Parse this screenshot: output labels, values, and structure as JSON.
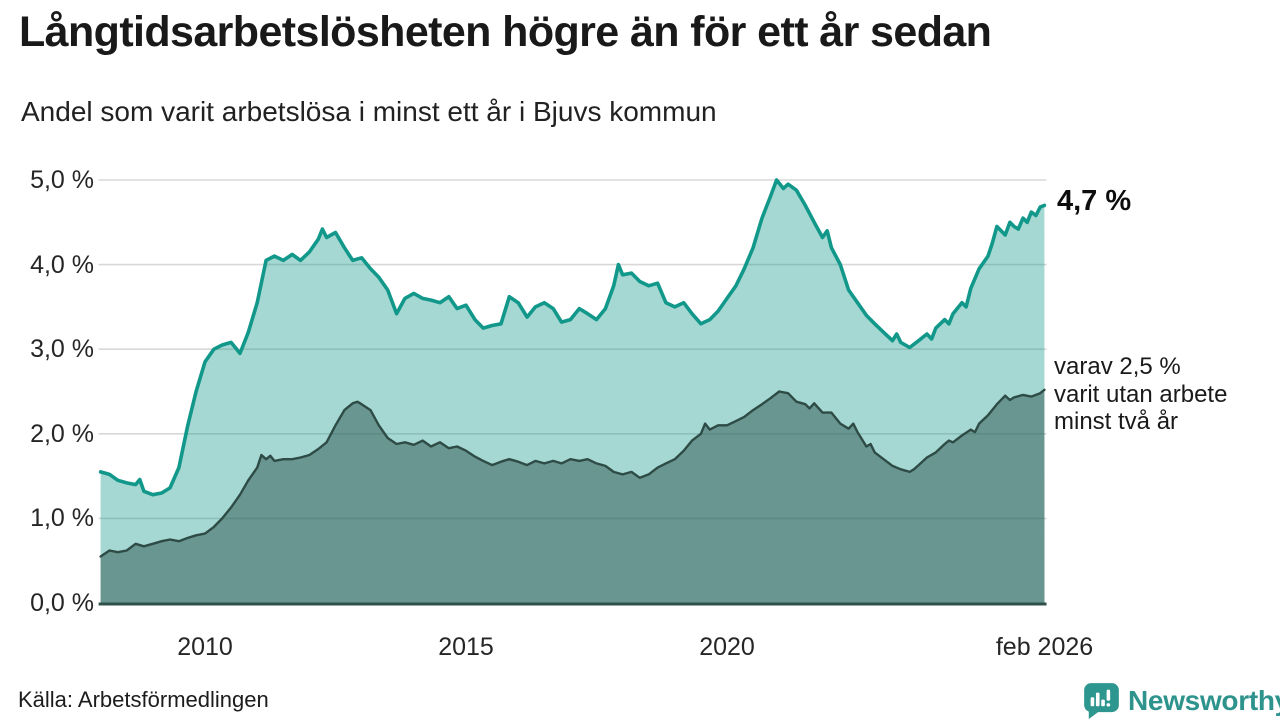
{
  "header": {
    "title": "Långtidsarbetslösheten högre än för ett år sedan",
    "subtitle": "Andel som varit arbetslösa i minst ett år i Bjuvs kommun"
  },
  "annotations": {
    "latest_value": "4,7 %",
    "secondary": [
      "varav 2,5 %",
      "varit utan arbete",
      "minst två år"
    ]
  },
  "footer": {
    "source": "Källa: Arbetsförmedlingen",
    "brand": "Newsworthy"
  },
  "colors": {
    "accent_teal": "#12988a",
    "light_fill": "#a5d8d3",
    "dark_fill": "#699690",
    "dark_line": "#2e4b46",
    "gridline": "#d8d8d8",
    "axis_line": "#30504a",
    "brand_teal": "#2e938c",
    "text": "#1a1a1a"
  },
  "chart_data": {
    "type": "area",
    "title": "Långtidsarbetslösheten högre än för ett år sedan",
    "subtitle": "Andel som varit arbetslösa i minst ett år i Bjuvs kommun",
    "xlabel": "",
    "ylabel": "",
    "grid": true,
    "ylim": [
      0,
      5
    ],
    "x_range": [
      2008.0,
      2026.083
    ],
    "y_ticks": [
      {
        "label": "0,0 %",
        "value": 0
      },
      {
        "label": "1,0 %",
        "value": 1
      },
      {
        "label": "2,0 %",
        "value": 2
      },
      {
        "label": "3,0 %",
        "value": 3
      },
      {
        "label": "4,0 %",
        "value": 4
      },
      {
        "label": "5,0 %",
        "value": 5
      }
    ],
    "x_ticks": [
      {
        "label": "2010",
        "year": 2010
      },
      {
        "label": "2015",
        "year": 2015
      },
      {
        "label": "2020",
        "year": 2020
      },
      {
        "label": "feb 2026",
        "year": 2026.083
      }
    ],
    "unit": "%",
    "series": [
      {
        "name": "Andel som varit arbetslösa i minst ett år",
        "line_color": "#12988a",
        "fill_color": "rgba(18,152,138,0.38)",
        "line_width": 3.6,
        "end_label": "4,7 %",
        "points": [
          [
            2008.0,
            1.55
          ],
          [
            2008.17,
            1.52
          ],
          [
            2008.33,
            1.45
          ],
          [
            2008.5,
            1.42
          ],
          [
            2008.67,
            1.4
          ],
          [
            2008.75,
            1.46
          ],
          [
            2008.83,
            1.32
          ],
          [
            2009.0,
            1.28
          ],
          [
            2009.17,
            1.3
          ],
          [
            2009.33,
            1.36
          ],
          [
            2009.5,
            1.6
          ],
          [
            2009.67,
            2.1
          ],
          [
            2009.83,
            2.5
          ],
          [
            2010.0,
            2.85
          ],
          [
            2010.17,
            3.0
          ],
          [
            2010.33,
            3.05
          ],
          [
            2010.5,
            3.08
          ],
          [
            2010.67,
            2.95
          ],
          [
            2010.83,
            3.2
          ],
          [
            2011.0,
            3.55
          ],
          [
            2011.17,
            4.05
          ],
          [
            2011.33,
            4.1
          ],
          [
            2011.5,
            4.05
          ],
          [
            2011.67,
            4.12
          ],
          [
            2011.83,
            4.05
          ],
          [
            2012.0,
            4.15
          ],
          [
            2012.17,
            4.3
          ],
          [
            2012.25,
            4.42
          ],
          [
            2012.33,
            4.32
          ],
          [
            2012.5,
            4.38
          ],
          [
            2012.67,
            4.2
          ],
          [
            2012.83,
            4.05
          ],
          [
            2013.0,
            4.08
          ],
          [
            2013.17,
            3.95
          ],
          [
            2013.33,
            3.85
          ],
          [
            2013.5,
            3.7
          ],
          [
            2013.67,
            3.42
          ],
          [
            2013.83,
            3.6
          ],
          [
            2014.0,
            3.66
          ],
          [
            2014.17,
            3.6
          ],
          [
            2014.33,
            3.58
          ],
          [
            2014.5,
            3.55
          ],
          [
            2014.67,
            3.62
          ],
          [
            2014.83,
            3.48
          ],
          [
            2015.0,
            3.52
          ],
          [
            2015.17,
            3.35
          ],
          [
            2015.33,
            3.25
          ],
          [
            2015.5,
            3.28
          ],
          [
            2015.67,
            3.3
          ],
          [
            2015.83,
            3.62
          ],
          [
            2016.0,
            3.55
          ],
          [
            2016.17,
            3.38
          ],
          [
            2016.33,
            3.5
          ],
          [
            2016.5,
            3.55
          ],
          [
            2016.67,
            3.48
          ],
          [
            2016.83,
            3.32
          ],
          [
            2017.0,
            3.35
          ],
          [
            2017.17,
            3.48
          ],
          [
            2017.33,
            3.42
          ],
          [
            2017.5,
            3.35
          ],
          [
            2017.67,
            3.48
          ],
          [
            2017.83,
            3.75
          ],
          [
            2017.92,
            4.0
          ],
          [
            2018.0,
            3.88
          ],
          [
            2018.17,
            3.9
          ],
          [
            2018.33,
            3.8
          ],
          [
            2018.5,
            3.75
          ],
          [
            2018.67,
            3.78
          ],
          [
            2018.83,
            3.55
          ],
          [
            2019.0,
            3.5
          ],
          [
            2019.17,
            3.55
          ],
          [
            2019.33,
            3.42
          ],
          [
            2019.5,
            3.3
          ],
          [
            2019.67,
            3.35
          ],
          [
            2019.83,
            3.45
          ],
          [
            2020.0,
            3.6
          ],
          [
            2020.17,
            3.75
          ],
          [
            2020.33,
            3.95
          ],
          [
            2020.5,
            4.2
          ],
          [
            2020.67,
            4.55
          ],
          [
            2020.83,
            4.8
          ],
          [
            2020.95,
            5.0
          ],
          [
            2021.08,
            4.9
          ],
          [
            2021.17,
            4.95
          ],
          [
            2021.33,
            4.88
          ],
          [
            2021.5,
            4.7
          ],
          [
            2021.67,
            4.5
          ],
          [
            2021.83,
            4.32
          ],
          [
            2021.92,
            4.4
          ],
          [
            2022.0,
            4.2
          ],
          [
            2022.17,
            4.0
          ],
          [
            2022.33,
            3.7
          ],
          [
            2022.5,
            3.55
          ],
          [
            2022.67,
            3.4
          ],
          [
            2022.83,
            3.3
          ],
          [
            2023.0,
            3.2
          ],
          [
            2023.17,
            3.1
          ],
          [
            2023.25,
            3.18
          ],
          [
            2023.33,
            3.08
          ],
          [
            2023.5,
            3.02
          ],
          [
            2023.67,
            3.1
          ],
          [
            2023.83,
            3.18
          ],
          [
            2023.92,
            3.12
          ],
          [
            2024.0,
            3.25
          ],
          [
            2024.17,
            3.35
          ],
          [
            2024.25,
            3.3
          ],
          [
            2024.33,
            3.42
          ],
          [
            2024.5,
            3.55
          ],
          [
            2024.58,
            3.5
          ],
          [
            2024.67,
            3.72
          ],
          [
            2024.83,
            3.95
          ],
          [
            2025.0,
            4.1
          ],
          [
            2025.08,
            4.25
          ],
          [
            2025.17,
            4.45
          ],
          [
            2025.25,
            4.4
          ],
          [
            2025.33,
            4.35
          ],
          [
            2025.42,
            4.5
          ],
          [
            2025.5,
            4.45
          ],
          [
            2025.58,
            4.42
          ],
          [
            2025.67,
            4.55
          ],
          [
            2025.75,
            4.5
          ],
          [
            2025.83,
            4.62
          ],
          [
            2025.92,
            4.58
          ],
          [
            2026.0,
            4.68
          ],
          [
            2026.08,
            4.7
          ]
        ]
      },
      {
        "name": "varav utan arbete minst två år",
        "line_color": "#2e4b46",
        "fill_color": "rgba(46,84,78,0.5)",
        "line_width": 2.4,
        "end_label": "varav 2,5 % varit utan arbete minst två år",
        "points": [
          [
            2008.0,
            0.55
          ],
          [
            2008.17,
            0.62
          ],
          [
            2008.33,
            0.6
          ],
          [
            2008.5,
            0.62
          ],
          [
            2008.67,
            0.7
          ],
          [
            2008.83,
            0.67
          ],
          [
            2009.0,
            0.7
          ],
          [
            2009.17,
            0.73
          ],
          [
            2009.33,
            0.75
          ],
          [
            2009.5,
            0.73
          ],
          [
            2009.67,
            0.77
          ],
          [
            2009.83,
            0.8
          ],
          [
            2010.0,
            0.82
          ],
          [
            2010.17,
            0.9
          ],
          [
            2010.33,
            1.0
          ],
          [
            2010.5,
            1.13
          ],
          [
            2010.67,
            1.28
          ],
          [
            2010.83,
            1.45
          ],
          [
            2011.0,
            1.6
          ],
          [
            2011.08,
            1.75
          ],
          [
            2011.17,
            1.7
          ],
          [
            2011.25,
            1.74
          ],
          [
            2011.33,
            1.68
          ],
          [
            2011.5,
            1.7
          ],
          [
            2011.67,
            1.7
          ],
          [
            2011.83,
            1.72
          ],
          [
            2012.0,
            1.75
          ],
          [
            2012.17,
            1.82
          ],
          [
            2012.33,
            1.9
          ],
          [
            2012.5,
            2.1
          ],
          [
            2012.67,
            2.28
          ],
          [
            2012.83,
            2.36
          ],
          [
            2012.92,
            2.38
          ],
          [
            2013.0,
            2.35
          ],
          [
            2013.17,
            2.28
          ],
          [
            2013.33,
            2.1
          ],
          [
            2013.5,
            1.95
          ],
          [
            2013.67,
            1.88
          ],
          [
            2013.83,
            1.9
          ],
          [
            2014.0,
            1.87
          ],
          [
            2014.17,
            1.92
          ],
          [
            2014.33,
            1.85
          ],
          [
            2014.5,
            1.9
          ],
          [
            2014.67,
            1.83
          ],
          [
            2014.83,
            1.85
          ],
          [
            2015.0,
            1.8
          ],
          [
            2015.17,
            1.73
          ],
          [
            2015.33,
            1.68
          ],
          [
            2015.5,
            1.63
          ],
          [
            2015.67,
            1.67
          ],
          [
            2015.83,
            1.7
          ],
          [
            2016.0,
            1.67
          ],
          [
            2016.17,
            1.63
          ],
          [
            2016.33,
            1.68
          ],
          [
            2016.5,
            1.65
          ],
          [
            2016.67,
            1.68
          ],
          [
            2016.83,
            1.65
          ],
          [
            2017.0,
            1.7
          ],
          [
            2017.17,
            1.68
          ],
          [
            2017.33,
            1.7
          ],
          [
            2017.5,
            1.65
          ],
          [
            2017.67,
            1.62
          ],
          [
            2017.83,
            1.55
          ],
          [
            2018.0,
            1.52
          ],
          [
            2018.17,
            1.55
          ],
          [
            2018.33,
            1.48
          ],
          [
            2018.5,
            1.52
          ],
          [
            2018.67,
            1.6
          ],
          [
            2018.83,
            1.65
          ],
          [
            2019.0,
            1.7
          ],
          [
            2019.17,
            1.8
          ],
          [
            2019.33,
            1.92
          ],
          [
            2019.5,
            2.0
          ],
          [
            2019.58,
            2.12
          ],
          [
            2019.67,
            2.05
          ],
          [
            2019.83,
            2.1
          ],
          [
            2020.0,
            2.1
          ],
          [
            2020.17,
            2.15
          ],
          [
            2020.33,
            2.2
          ],
          [
            2020.5,
            2.28
          ],
          [
            2020.67,
            2.35
          ],
          [
            2020.83,
            2.42
          ],
          [
            2021.0,
            2.5
          ],
          [
            2021.17,
            2.48
          ],
          [
            2021.33,
            2.38
          ],
          [
            2021.5,
            2.35
          ],
          [
            2021.58,
            2.3
          ],
          [
            2021.67,
            2.36
          ],
          [
            2021.83,
            2.25
          ],
          [
            2022.0,
            2.25
          ],
          [
            2022.17,
            2.12
          ],
          [
            2022.33,
            2.06
          ],
          [
            2022.42,
            2.12
          ],
          [
            2022.5,
            2.02
          ],
          [
            2022.67,
            1.85
          ],
          [
            2022.75,
            1.88
          ],
          [
            2022.83,
            1.78
          ],
          [
            2023.0,
            1.7
          ],
          [
            2023.17,
            1.62
          ],
          [
            2023.33,
            1.58
          ],
          [
            2023.5,
            1.55
          ],
          [
            2023.58,
            1.58
          ],
          [
            2023.67,
            1.63
          ],
          [
            2023.83,
            1.72
          ],
          [
            2024.0,
            1.78
          ],
          [
            2024.17,
            1.88
          ],
          [
            2024.25,
            1.92
          ],
          [
            2024.33,
            1.9
          ],
          [
            2024.5,
            1.98
          ],
          [
            2024.67,
            2.05
          ],
          [
            2024.75,
            2.02
          ],
          [
            2024.83,
            2.12
          ],
          [
            2025.0,
            2.22
          ],
          [
            2025.17,
            2.35
          ],
          [
            2025.33,
            2.45
          ],
          [
            2025.42,
            2.4
          ],
          [
            2025.5,
            2.43
          ],
          [
            2025.67,
            2.46
          ],
          [
            2025.83,
            2.44
          ],
          [
            2026.0,
            2.48
          ],
          [
            2026.08,
            2.52
          ]
        ]
      }
    ]
  }
}
